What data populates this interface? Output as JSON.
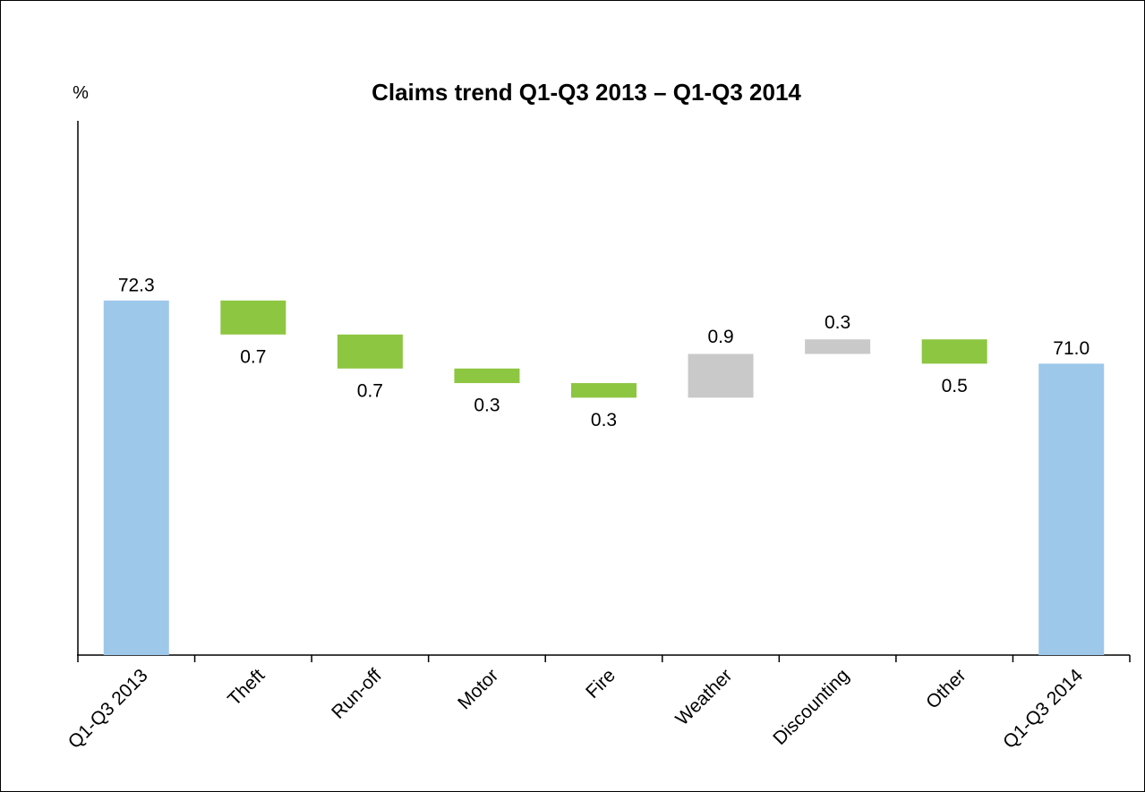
{
  "chart_data": {
    "type": "waterfall",
    "title": "Claims trend Q1-Q3 2013 – Q1-Q3 2014",
    "y_label": "%",
    "categories": [
      "Q1-Q3 2013",
      "Theft",
      "Run-off",
      "Motor",
      "Fire",
      "Weather",
      "Discounting",
      "Other",
      "Q1-Q3 2014"
    ],
    "values": [
      72.3,
      -0.7,
      -0.7,
      -0.3,
      -0.3,
      0.9,
      0.3,
      -0.5,
      71.0
    ],
    "value_labels": [
      "72.3",
      "0.7",
      "0.7",
      "0.3",
      "0.3",
      "0.9",
      "0.3",
      "0.5",
      "71.0"
    ],
    "bar_colors": [
      "#9dc8ea",
      "#8dc641",
      "#8dc641",
      "#8dc641",
      "#8dc641",
      "#c9c9c9",
      "#c9c9c9",
      "#8dc641",
      "#9dc8ea"
    ],
    "ylim": [
      65,
      76
    ]
  }
}
